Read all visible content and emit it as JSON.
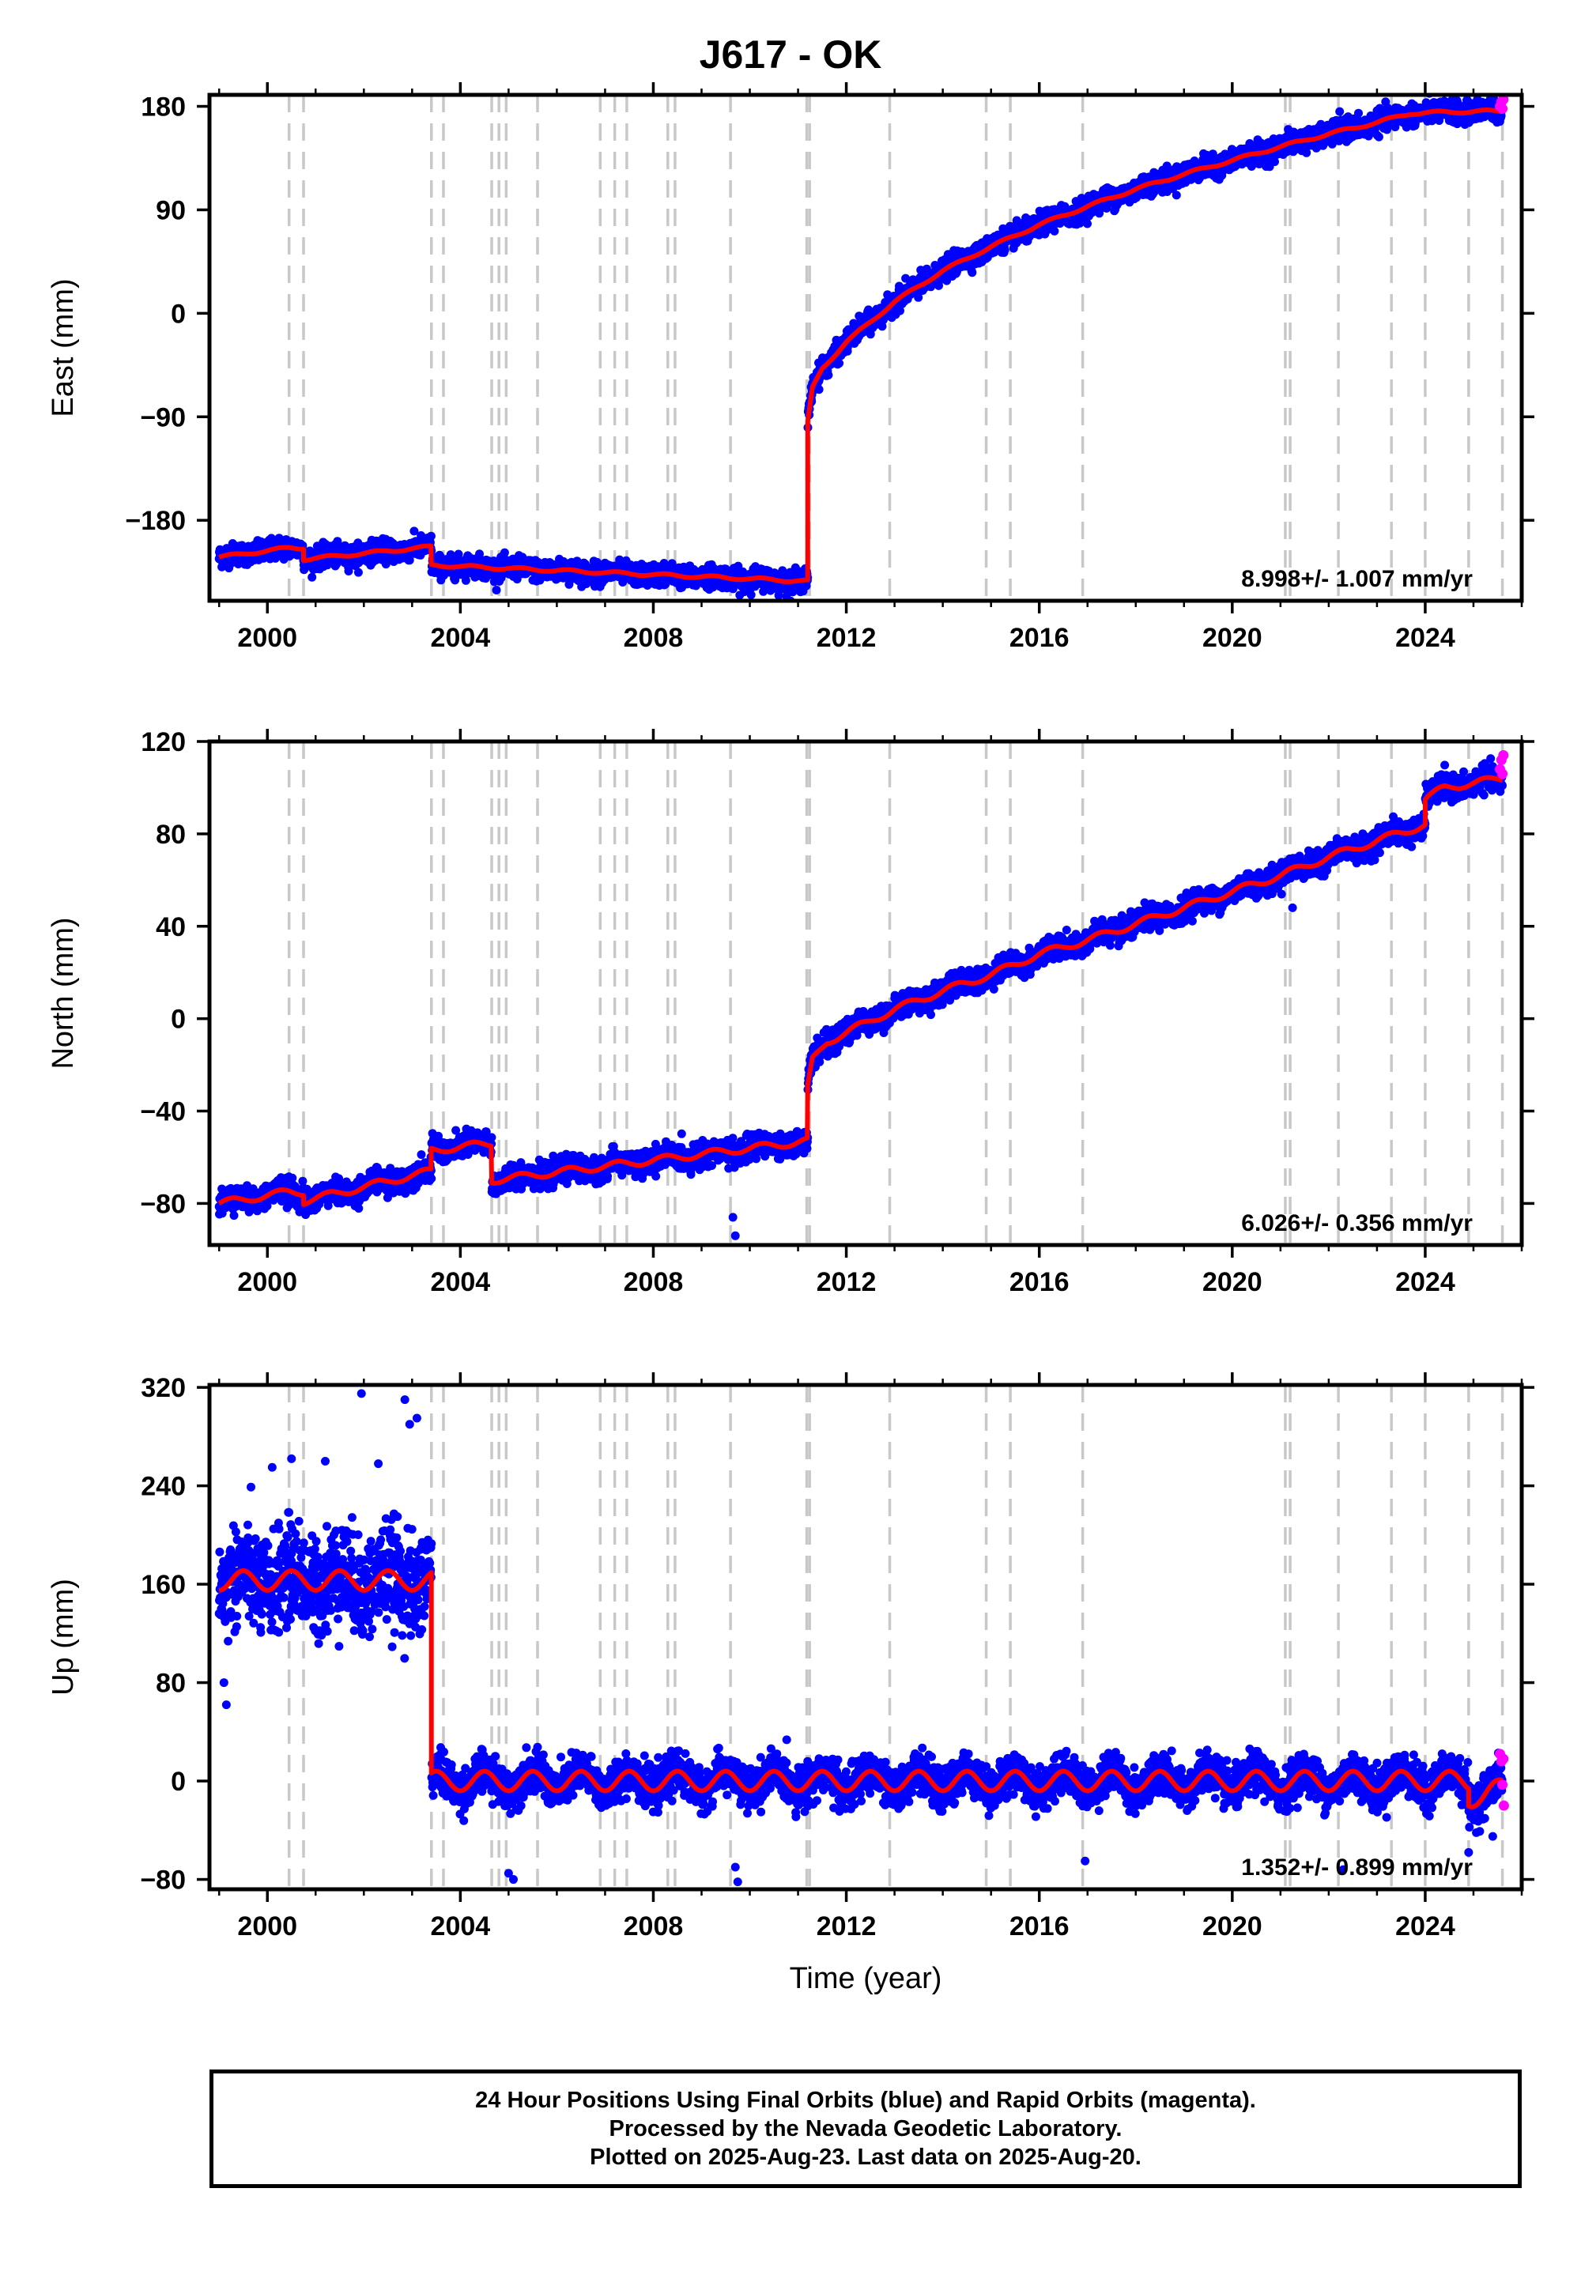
{
  "title": "J617 - OK",
  "footer": {
    "line1": "24 Hour Positions Using Final Orbits (blue) and Rapid Orbits (magenta).",
    "line2": "Processed by the Nevada Geodetic Laboratory.",
    "line3": "Plotted on 2025-Aug-23. Last data on 2025-Aug-20."
  },
  "colors": {
    "final_orbits": "#0000ff",
    "rapid_orbits": "#ff00ff",
    "model": "#ff0000",
    "event_lines": "#c8c8c8"
  },
  "chart_data": [
    {
      "type": "scatter",
      "component": "east",
      "ylabel": "East (mm)",
      "xlabel": "",
      "xlim": [
        1998.8,
        2026.0
      ],
      "ylim": [
        -250,
        190
      ],
      "xticks": [
        2000,
        2004,
        2008,
        2012,
        2016,
        2020,
        2024
      ],
      "yticks": [
        -180,
        -90,
        0,
        90,
        180
      ],
      "ytick_labels": [
        "−180",
        "−90",
        "0",
        "90",
        "180"
      ],
      "rate_label": "8.998+/- 1.007 mm/yr",
      "event_years": [
        2000.45,
        2000.75,
        2003.4,
        2003.65,
        2004.65,
        2004.8,
        2004.95,
        2005.6,
        2006.9,
        2007.2,
        2007.45,
        2008.3,
        2008.45,
        2009.6,
        2011.18,
        2011.24,
        2012.9,
        2014.9,
        2015.4,
        2016.9,
        2021.1,
        2021.2,
        2022.2,
        2023.3,
        2024.0,
        2024.9,
        2025.6
      ],
      "model_segments": [
        {
          "x": [
            1999.0,
            2000.45
          ],
          "y": [
            -212,
            -204
          ]
        },
        {
          "x": [
            2000.45,
            2000.75
          ],
          "y": [
            -204,
            -204
          ]
        },
        {
          "x": [
            2000.75,
            2003.4
          ],
          "y": [
            -214,
            -203
          ]
        },
        {
          "x": [
            2003.4,
            2011.2
          ],
          "y": [
            -219,
            -233
          ]
        },
        {
          "x": [
            2011.2,
            2011.3,
            2011.5,
            2012.0,
            2013.0,
            2014.0,
            2015.0,
            2016.0,
            2017.0,
            2018.0,
            2019.0,
            2020.0,
            2021.0,
            2022.0,
            2023.0,
            2023.7,
            2024.4,
            2025.6
          ],
          "y": [
            -95,
            -65,
            -48,
            -25,
            10,
            37,
            58,
            77,
            93,
            108,
            121,
            133,
            145,
            156,
            166,
            174,
            175,
            176
          ]
        }
      ],
      "scatter_sd": 4.5,
      "rapid_points": {
        "x": [
          2025.55,
          2025.58,
          2025.6,
          2025.62
        ],
        "y": [
          180,
          184,
          178,
          186
        ]
      }
    },
    {
      "type": "scatter",
      "component": "north",
      "ylabel": "North (mm)",
      "xlabel": "",
      "xlim": [
        1998.8,
        2026.0
      ],
      "ylim": [
        -98,
        120
      ],
      "xticks": [
        2000,
        2004,
        2008,
        2012,
        2016,
        2020,
        2024
      ],
      "yticks": [
        -80,
        -40,
        0,
        40,
        80,
        120
      ],
      "ytick_labels": [
        "−80",
        "−40",
        "0",
        "40",
        "80",
        "120"
      ],
      "rate_label": "6.026+/- 0.356 mm/yr",
      "event_years": [
        2000.45,
        2000.75,
        2003.4,
        2003.65,
        2004.65,
        2004.8,
        2004.95,
        2005.6,
        2006.9,
        2007.2,
        2007.45,
        2008.3,
        2008.45,
        2009.6,
        2011.18,
        2011.24,
        2012.9,
        2014.9,
        2015.4,
        2016.9,
        2021.1,
        2021.2,
        2022.2,
        2023.3,
        2024.0,
        2024.9,
        2025.6
      ],
      "model_segments": [
        {
          "x": [
            1999.0,
            2000.45
          ],
          "y": [
            -80,
            -75
          ]
        },
        {
          "x": [
            2000.45,
            2000.75
          ],
          "y": [
            -75,
            -75
          ]
        },
        {
          "x": [
            2000.75,
            2003.4
          ],
          "y": [
            -79,
            -66
          ]
        },
        {
          "x": [
            2003.4,
            2004.65
          ],
          "y": [
            -57,
            -54
          ]
        },
        {
          "x": [
            2004.65,
            2011.2
          ],
          "y": [
            -70,
            -53
          ]
        },
        {
          "x": [
            2011.2,
            2011.3,
            2011.6,
            2012.0,
            2013.0,
            2014.0,
            2015.0,
            2016.0,
            2017.0,
            2018.0,
            2019.0,
            2020.0,
            2021.0,
            2022.0,
            2023.0,
            2024.0
          ],
          "y": [
            -30,
            -18,
            -10,
            -6,
            4,
            12,
            19,
            28,
            34,
            41,
            48,
            55,
            62,
            70,
            77,
            84
          ]
        },
        {
          "x": [
            2024.0,
            2024.4,
            2025.6
          ],
          "y": [
            95,
            100,
            104
          ]
        }
      ],
      "scatter_sd": 2.5,
      "outlier_points": {
        "x": [
          2009.65,
          2009.7,
          2021.25
        ],
        "y": [
          -86,
          -94,
          48
        ]
      },
      "rapid_points": {
        "x": [
          2025.55,
          2025.58,
          2025.6,
          2025.62
        ],
        "y": [
          108,
          112,
          106,
          114
        ]
      }
    },
    {
      "type": "scatter",
      "component": "up",
      "ylabel": "Up (mm)",
      "xlabel": "Time (year)",
      "xlim": [
        1998.8,
        2026.0
      ],
      "ylim": [
        -88,
        322
      ],
      "xticks": [
        2000,
        2004,
        2008,
        2012,
        2016,
        2020,
        2024
      ],
      "yticks": [
        -80,
        0,
        80,
        160,
        240,
        320
      ],
      "ytick_labels": [
        "−80",
        "0",
        "80",
        "160",
        "240",
        "320"
      ],
      "rate_label": "1.352+/- 0.899 mm/yr",
      "event_years": [
        2000.45,
        2000.75,
        2003.4,
        2003.65,
        2004.65,
        2004.8,
        2004.95,
        2005.6,
        2006.9,
        2007.2,
        2007.45,
        2008.3,
        2008.45,
        2009.6,
        2011.18,
        2011.24,
        2012.9,
        2014.9,
        2015.4,
        2016.9,
        2021.1,
        2021.2,
        2022.2,
        2023.3,
        2024.0,
        2024.9,
        2025.6
      ],
      "model_segments": [
        {
          "x": [
            1999.0,
            2003.4
          ],
          "y": [
            163,
            163
          ]
        },
        {
          "x": [
            2003.4,
            2024.9
          ],
          "y": [
            0,
            0
          ]
        },
        {
          "x": [
            2024.9,
            2025.6
          ],
          "y": [
            -14,
            -6
          ]
        }
      ],
      "seasonal_amplitude": 8,
      "scatter_sd_early": 20,
      "scatter_sd_late": 8,
      "outlier_points": {
        "x": [
          1999.1,
          1999.15,
          2000.1,
          2000.5,
          2001.2,
          2001.95,
          2002.3,
          2002.85,
          2002.95,
          2003.1,
          2005.0,
          2005.1,
          2009.7,
          2009.75,
          2016.95,
          2022.3,
          2024.9,
          2025.4
        ],
        "y": [
          80,
          62,
          255,
          262,
          260,
          315,
          258,
          310,
          290,
          295,
          -75,
          -80,
          -70,
          -82,
          -65,
          -72,
          -58,
          -45
        ]
      },
      "rapid_points": {
        "x": [
          2025.55,
          2025.58,
          2025.6,
          2025.62,
          2025.63
        ],
        "y": [
          22,
          16,
          -3,
          18,
          -20
        ]
      }
    }
  ]
}
